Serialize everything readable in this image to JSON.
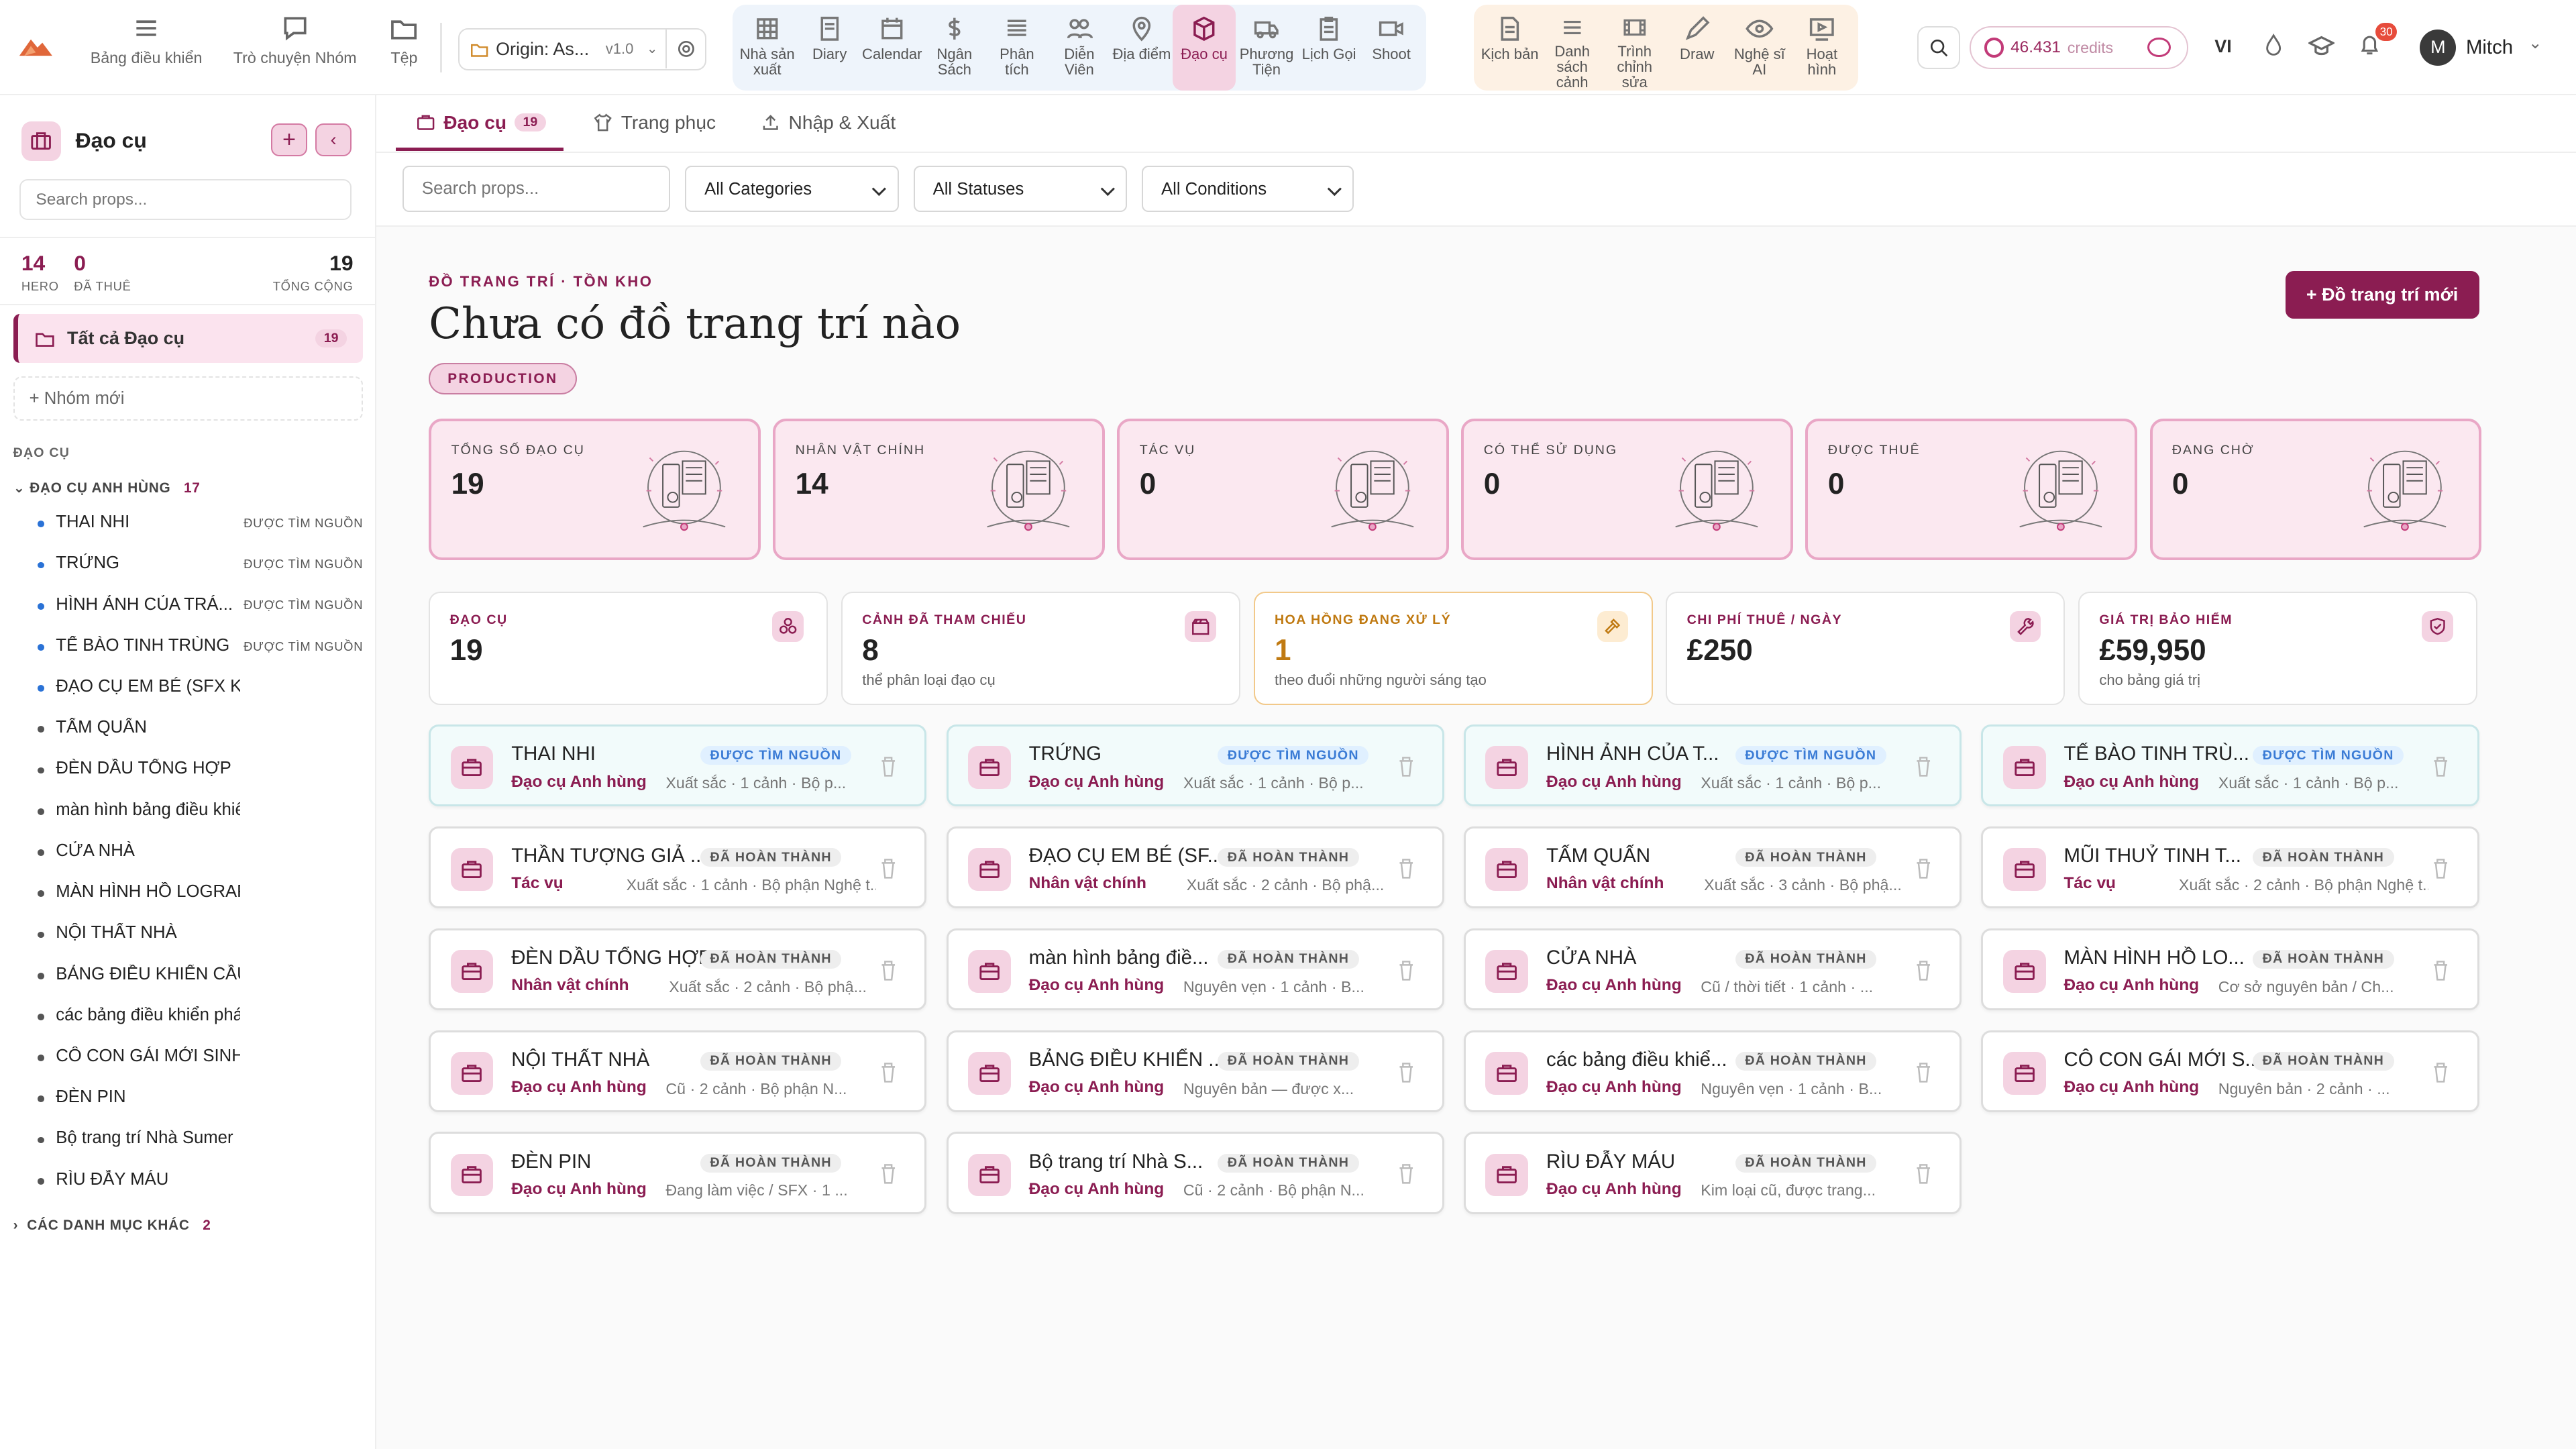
{
  "topbar": {
    "nav_left": [
      {
        "label": "Bảng điều khiển",
        "icon": "menu-icon"
      },
      {
        "label": "Trò chuyện Nhóm",
        "icon": "chat-icon"
      },
      {
        "label": "Tệp",
        "icon": "folder-icon"
      }
    ],
    "project": {
      "name": "Origin: As...",
      "version": "v1.0"
    },
    "group1": [
      {
        "label": "Nhà sản xuất",
        "icon": "grid-icon"
      },
      {
        "label": "Diary",
        "icon": "book-icon"
      },
      {
        "label": "Calendar",
        "icon": "calendar-icon"
      },
      {
        "label": "Ngân Sách",
        "icon": "dollar-icon"
      },
      {
        "label": "Phân tích",
        "icon": "stack-icon"
      },
      {
        "label": "Diễn Viên",
        "icon": "people-icon"
      },
      {
        "label": "Địa điểm",
        "icon": "pin-icon"
      },
      {
        "label": "Đạo cụ",
        "icon": "box-icon"
      },
      {
        "label": "Phương Tiện",
        "icon": "truck-icon"
      },
      {
        "label": "Lịch Gọi",
        "icon": "clipboard-icon"
      },
      {
        "label": "Shoot",
        "icon": "camera-icon"
      }
    ],
    "group2": [
      {
        "label": "Kịch bản",
        "icon": "file-icon"
      },
      {
        "label": "Danh sách cảnh",
        "icon": "list-icon"
      },
      {
        "label": "Trình chỉnh sửa",
        "icon": "film-icon"
      },
      {
        "label": "Draw",
        "icon": "pen-icon"
      },
      {
        "label": "Nghệ sĩ AI",
        "icon": "eye-icon"
      },
      {
        "label": "Hoạt hình",
        "icon": "play-icon"
      }
    ],
    "credits_value": "46.431",
    "credits_unit": "credits",
    "lang": "VI",
    "notif_count": "30",
    "user_initial": "M",
    "user_name": "Mitch"
  },
  "sidebar": {
    "title": "Đạo cụ",
    "search_placeholder": "Search props...",
    "stats": [
      {
        "value": "14",
        "label": "HERO"
      },
      {
        "value": "0",
        "label": "ĐÃ THUÊ"
      },
      {
        "value": "19",
        "label": "TỔNG CỘNG"
      }
    ],
    "all_label": "Tất cả Đạo cụ",
    "all_count": "19",
    "new_group": "+  Nhóm mới",
    "section": "ĐẠO CỤ",
    "group_label": "ĐẠO CỤ ANH HÙNG",
    "group_count": "17",
    "items": [
      {
        "name": "THAI NHI",
        "tag": "ĐƯỢC TÌM NGUỒN",
        "dot": "blue"
      },
      {
        "name": "TRỨNG",
        "tag": "ĐƯỢC TÌM NGUỒN",
        "dot": "blue"
      },
      {
        "name": "HÌNH ẢNH CỦA TRÁ...",
        "tag": "ĐƯỢC TÌM NGUỒN",
        "dot": "blue"
      },
      {
        "name": "TẾ BÀO TINH TRÙNG",
        "tag": "ĐƯỢC TÌM NGUỒN",
        "dot": "blue"
      },
      {
        "name": "ĐẠO CỤ EM BÉ (SFX KÉP)",
        "tag": "",
        "dot": "blue"
      },
      {
        "name": "TẤM QUẤN",
        "tag": "",
        "dot": "gray"
      },
      {
        "name": "ĐÈN DẦU TỔNG HỢP",
        "tag": "",
        "dot": "gray"
      },
      {
        "name": "màn hình bảng điều khiển",
        "tag": "",
        "dot": "gray"
      },
      {
        "name": "CỬA NHÀ",
        "tag": "",
        "dot": "gray"
      },
      {
        "name": "MÀN HÌNH HỒ LOGRAPHIC",
        "tag": "",
        "dot": "gray"
      },
      {
        "name": "NỘI THẤT NHÀ",
        "tag": "",
        "dot": "gray"
      },
      {
        "name": "BẢNG ĐIỀU KHIỂN CẦU NỐI",
        "tag": "",
        "dot": "gray"
      },
      {
        "name": "các bảng điều khiển phát sáng",
        "tag": "",
        "dot": "gray"
      },
      {
        "name": "CÔ CON GÁI MỚI SINH",
        "tag": "",
        "dot": "gray"
      },
      {
        "name": "ĐÈN PIN",
        "tag": "",
        "dot": "gray"
      },
      {
        "name": "Bộ trang trí Nhà Sumer",
        "tag": "",
        "dot": "gray"
      },
      {
        "name": "RÌU ĐẪY MÁU",
        "tag": "",
        "dot": "gray"
      }
    ],
    "other_label": "CÁC DANH MỤC KHÁC",
    "other_count": "2"
  },
  "tabs": [
    {
      "label": "Đạo cụ",
      "count": "19"
    },
    {
      "label": "Trang phục"
    },
    {
      "label": "Nhập & Xuất"
    }
  ],
  "filters": {
    "search_placeholder": "Search props...",
    "category": "All Categories",
    "status": "All Statuses",
    "condition": "All Conditions"
  },
  "header": {
    "eyebrow": "ĐỒ TRANG TRÍ · TỒN KHO",
    "title": "Chưa có đồ trang trí nào",
    "badge": "PRODUCTION",
    "new_button": "+ Đồ trang trí mới"
  },
  "kpis": [
    {
      "label": "TỔNG SỐ ĐẠO CỤ",
      "value": "19"
    },
    {
      "label": "NHÂN VẬT CHÍNH",
      "value": "14"
    },
    {
      "label": "TÁC VỤ",
      "value": "0"
    },
    {
      "label": "CÓ THỂ SỬ DỤNG",
      "value": "0"
    },
    {
      "label": "ĐƯỢC THUÊ",
      "value": "0"
    },
    {
      "label": "ĐANG CHỜ",
      "value": "0"
    }
  ],
  "metrics": [
    {
      "label": "ĐẠO CỤ",
      "value": "19",
      "sub": "",
      "icon": "cluster-icon"
    },
    {
      "label": "CẢNH ĐÃ THAM CHIẾU",
      "value": "8",
      "sub": "thể phân loại đạo cụ",
      "icon": "clapper-icon"
    },
    {
      "label": "HOA HỒNG ĐANG XỬ LÝ",
      "value": "1",
      "sub": "theo đuổi những người sáng tạo",
      "icon": "hammer-icon"
    },
    {
      "label": "CHI PHÍ THUÊ / NGÀY",
      "value": "£250",
      "sub": "",
      "icon": "wrench-icon"
    },
    {
      "label": "GIÁ TRỊ BẢO HIỂM",
      "value": "£59,950",
      "sub": "cho bảng giá trị",
      "icon": "shield-icon"
    }
  ],
  "props": [
    {
      "name": "THAI NHI",
      "status": "ĐƯỢC TÌM NGUỒN",
      "kind": "src",
      "role": "Đạo cụ Anh hùng",
      "meta": "Xuất sắc · 1 cảnh · Bộ p..."
    },
    {
      "name": "TRỨNG",
      "status": "ĐƯỢC TÌM NGUỒN",
      "kind": "src",
      "role": "Đạo cụ Anh hùng",
      "meta": "Xuất sắc · 1 cảnh · Bộ p..."
    },
    {
      "name": "HÌNH ẢNH CỦA T...",
      "status": "ĐƯỢC TÌM NGUỒN",
      "kind": "src",
      "role": "Đạo cụ Anh hùng",
      "meta": "Xuất sắc · 1 cảnh · Bộ p..."
    },
    {
      "name": "TẾ BÀO TINH TRÙ...",
      "status": "ĐƯỢC TÌM NGUỒN",
      "kind": "src",
      "role": "Đạo cụ Anh hùng",
      "meta": "Xuất sắc · 1 cảnh · Bộ p..."
    },
    {
      "name": "THẦN TƯỢNG GIẢ ...",
      "status": "ĐÃ HOÀN THÀNH",
      "kind": "done",
      "role": "Tác vụ",
      "meta": "Xuất sắc · 1 cảnh · Bộ phận Nghệ t..."
    },
    {
      "name": "ĐẠO CỤ EM BÉ (SF...",
      "status": "ĐÃ HOÀN THÀNH",
      "kind": "done",
      "role": "Nhân vật chính",
      "meta": "Xuất sắc · 2 cảnh · Bộ phậ..."
    },
    {
      "name": "TẤM QUẤN",
      "status": "ĐÃ HOÀN THÀNH",
      "kind": "done",
      "role": "Nhân vật chính",
      "meta": "Xuất sắc · 3 cảnh · Bộ phậ..."
    },
    {
      "name": "MŨI THUỶ TINH T...",
      "status": "ĐÃ HOÀN THÀNH",
      "kind": "done",
      "role": "Tác vụ",
      "meta": "Xuất sắc · 2 cảnh · Bộ phận Nghệ t..."
    },
    {
      "name": "ĐÈN DẦU TỔNG HỢP",
      "status": "ĐÃ HOÀN THÀNH",
      "kind": "done",
      "role": "Nhân vật chính",
      "meta": "Xuất sắc · 2 cảnh · Bộ phậ..."
    },
    {
      "name": "màn hình bảng điề...",
      "status": "ĐÃ HOÀN THÀNH",
      "kind": "done",
      "role": "Đạo cụ Anh hùng",
      "meta": "Nguyên vẹn · 1 cảnh · B..."
    },
    {
      "name": "CỬA NHÀ",
      "status": "ĐÃ HOÀN THÀNH",
      "kind": "done",
      "role": "Đạo cụ Anh hùng",
      "meta": "Cũ / thời tiết · 1 cảnh · ..."
    },
    {
      "name": "MÀN HÌNH HỒ LO...",
      "status": "ĐÃ HOÀN THÀNH",
      "kind": "done",
      "role": "Đạo cụ Anh hùng",
      "meta": "Cơ sở nguyên bản / Ch..."
    },
    {
      "name": "NỘI THẤT NHÀ",
      "status": "ĐÃ HOÀN THÀNH",
      "kind": "done",
      "role": "Đạo cụ Anh hùng",
      "meta": "Cũ · 2 cảnh · Bộ phận N..."
    },
    {
      "name": "BẢNG ĐIỀU KHIỂN ...",
      "status": "ĐÃ HOÀN THÀNH",
      "kind": "done",
      "role": "Đạo cụ Anh hùng",
      "meta": "Nguyên bản — được x..."
    },
    {
      "name": "các bảng điều khiể...",
      "status": "ĐÃ HOÀN THÀNH",
      "kind": "done",
      "role": "Đạo cụ Anh hùng",
      "meta": "Nguyên vẹn · 1 cảnh · B..."
    },
    {
      "name": "CÔ CON GÁI MỚI S...",
      "status": "ĐÃ HOÀN THÀNH",
      "kind": "done",
      "role": "Đạo cụ Anh hùng",
      "meta": "Nguyên bản · 2 cảnh · ..."
    },
    {
      "name": "ĐÈN PIN",
      "status": "ĐÃ HOÀN THÀNH",
      "kind": "done",
      "role": "Đạo cụ Anh hùng",
      "meta": "Đang làm việc / SFX · 1 ..."
    },
    {
      "name": "Bộ trang trí Nhà S...",
      "status": "ĐÃ HOÀN THÀNH",
      "kind": "done",
      "role": "Đạo cụ Anh hùng",
      "meta": "Cũ · 2 cảnh · Bộ phận N..."
    },
    {
      "name": "RÌU ĐẪY MÁU",
      "status": "ĐÃ HOÀN THÀNH",
      "kind": "done",
      "role": "Đạo cụ Anh hùng",
      "meta": "Kim loại cũ, được trang..."
    }
  ],
  "colors": {
    "accent": "#8b1d52",
    "accent_light": "#f4d3e2",
    "warn": "#c07a12",
    "source_blue": "#3a7bd5"
  }
}
